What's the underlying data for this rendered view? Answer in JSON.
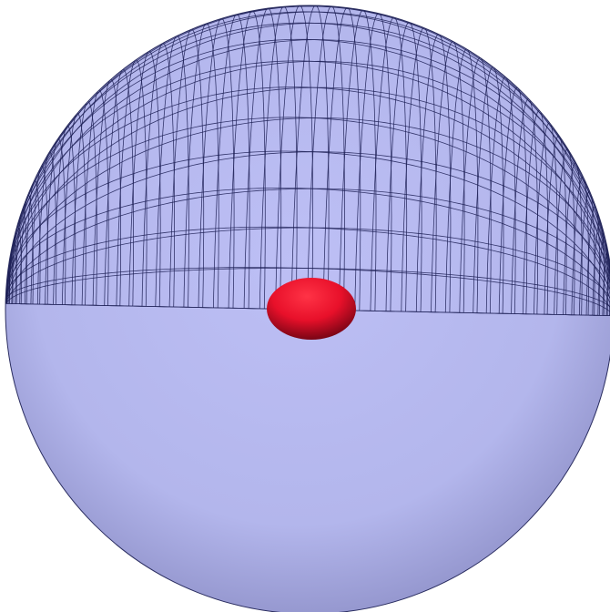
{
  "scene": {
    "background": "#ffffff",
    "outer_sphere": {
      "fill": "#b3b6ec",
      "highlight": "#bdbff5",
      "shade": "#8e90c8",
      "wire_color": "#1c1f55",
      "opacity": 1
    },
    "inner_ellipsoid": {
      "color": "#e8102a",
      "highlight": "#ff3346",
      "shade": "#7a0515"
    }
  }
}
